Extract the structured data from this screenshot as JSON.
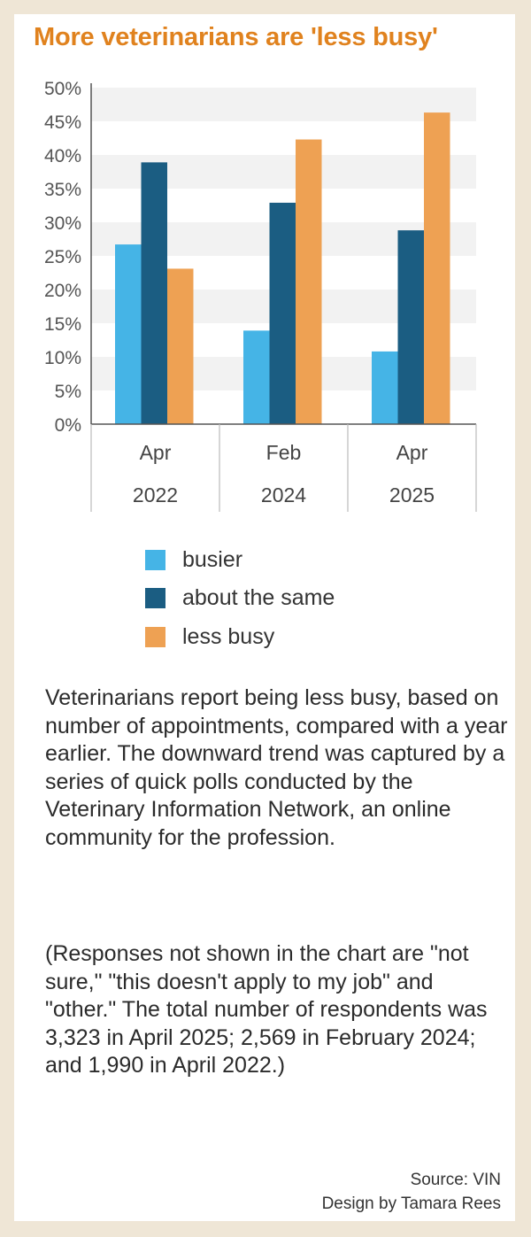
{
  "title": "More veterinarians are 'less busy'",
  "chart_data": {
    "type": "bar",
    "categories": [
      [
        "Apr",
        "2022"
      ],
      [
        "Feb",
        "2024"
      ],
      [
        "Apr",
        "2025"
      ]
    ],
    "series": [
      {
        "name": "busier",
        "values": [
          26.7,
          13.9,
          10.8
        ],
        "color": "#45b4e6"
      },
      {
        "name": "about the same",
        "values": [
          38.9,
          32.9,
          28.8
        ],
        "color": "#1b5d82"
      },
      {
        "name": "less busy",
        "values": [
          23.1,
          42.3,
          46.3
        ],
        "color": "#eea153"
      }
    ],
    "y_ticks": [
      "0%",
      "5%",
      "10%",
      "15%",
      "20%",
      "25%",
      "30%",
      "35%",
      "40%",
      "45%",
      "50%"
    ],
    "ylim": [
      0,
      50
    ],
    "ylabel": "",
    "xlabel": "",
    "grid": "alternating horizontal bands",
    "legend_position": "below"
  },
  "description": "Veterinarians report being less busy, based on number of appointments, compared with a year earlier. The downward trend was captured by a series of quick polls conducted by the Veterinary Information Network, an online community for the profession.",
  "note": "(Responses not shown in the chart are \"not sure,\" \"this doesn't apply to my job\" and \"other.\" The total number of respondents was 3,323 in April 2025; 2,569 in February 2024; and 1,990 in April 2022.)",
  "source": "Source: VIN",
  "credit": "Design by Tamara Rees",
  "colors": {
    "accent": "#e0821e",
    "background": "#efe6d6",
    "band": "#f2f2f2"
  }
}
